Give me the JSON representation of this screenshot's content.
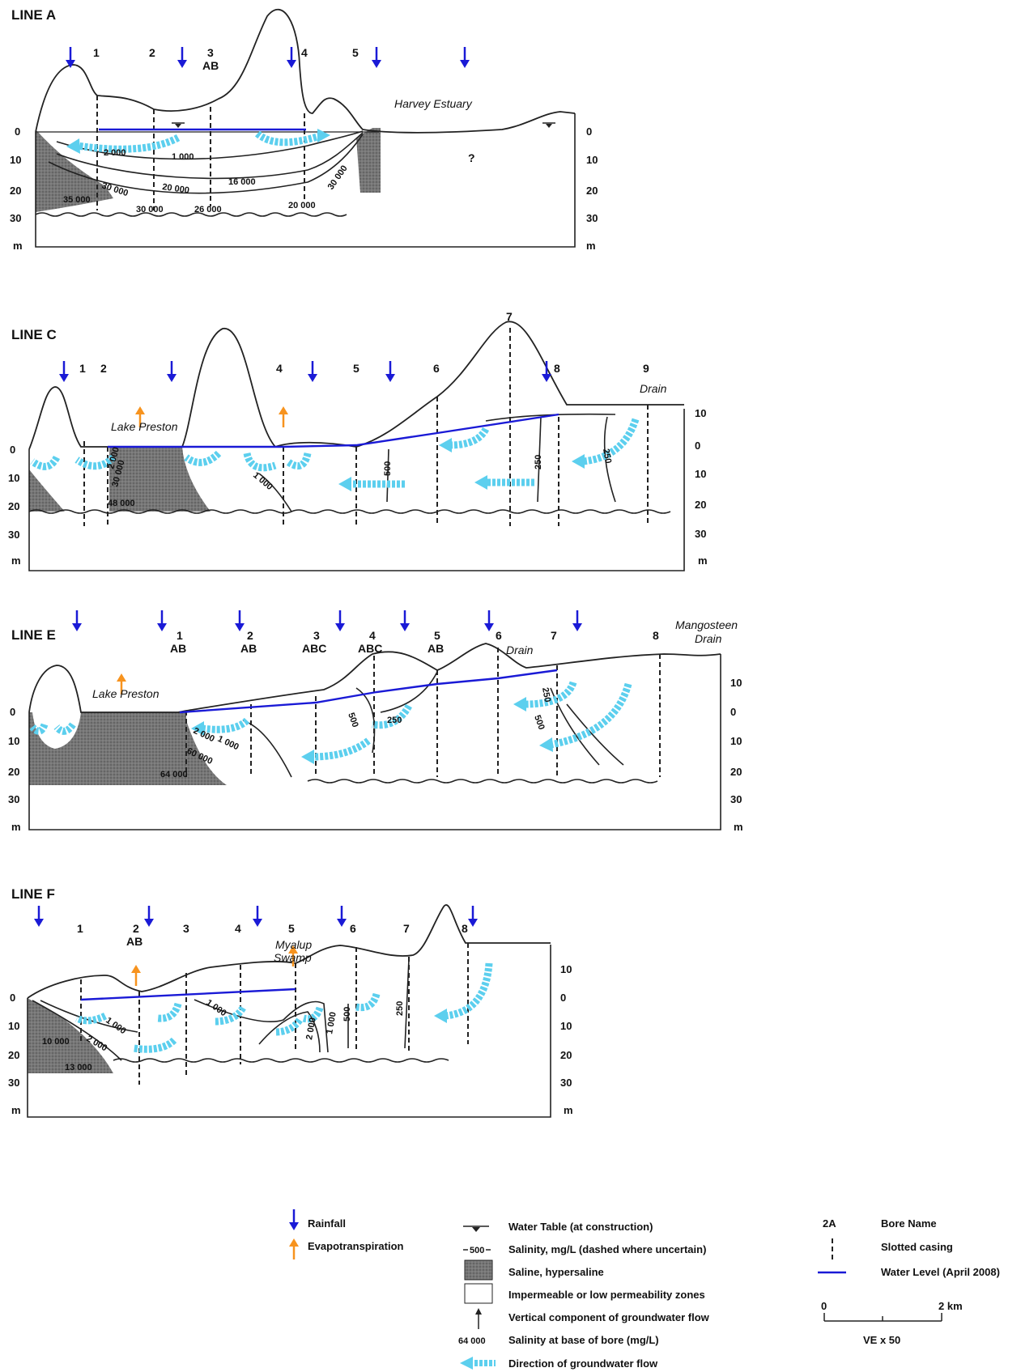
{
  "colors": {
    "rainfall": "#1a1ad6",
    "evapotranspiration": "#f7931e",
    "flow": "#5ccfee",
    "water_level": "#1a1ad6",
    "saline": "#7a7a7a"
  },
  "line_a": {
    "title": "LINE A",
    "bores": [
      "1",
      "2",
      "3",
      "AB",
      "4",
      "5"
    ],
    "place": "Harvey Estuary",
    "question": "?",
    "depths_left": [
      "0",
      "10",
      "20",
      "30",
      "m"
    ],
    "depths_right": [
      "0",
      "10",
      "20",
      "30",
      "m"
    ],
    "salinities": [
      "2 000",
      "1 000",
      "30 000",
      "20 000",
      "16 000",
      "30 000",
      "35 000",
      "30 000",
      "26 000",
      "20 000"
    ]
  },
  "line_c": {
    "title": "LINE C",
    "bores": [
      "1",
      "2",
      "4",
      "5",
      "6",
      "7",
      "8",
      "9"
    ],
    "places": [
      "Lake Preston",
      "Drain"
    ],
    "depths_left": [
      "0",
      "10",
      "20",
      "30",
      "m"
    ],
    "depths_right": [
      "10",
      "0",
      "10",
      "20",
      "30",
      "m"
    ],
    "salinities": [
      "2 000",
      "30 000",
      "1 000",
      "500",
      "250",
      "250",
      "48 000"
    ]
  },
  "line_e": {
    "title": "LINE E",
    "bores": [
      "1",
      "AB",
      "2",
      "AB",
      "3",
      "ABC",
      "4",
      "ABC",
      "5",
      "AB",
      "6",
      "7",
      "8"
    ],
    "places": [
      "Lake Preston",
      "Drain",
      "Mangosteen",
      "Drain"
    ],
    "depths_left": [
      "0",
      "10",
      "20",
      "30",
      "m"
    ],
    "depths_right": [
      "10",
      "0",
      "10",
      "20",
      "30",
      "m"
    ],
    "salinities": [
      "2 000",
      "1 000",
      "60 000",
      "500",
      "250",
      "250",
      "500",
      "64 000"
    ]
  },
  "line_f": {
    "title": "LINE F",
    "bores": [
      "1",
      "2",
      "AB",
      "3",
      "4",
      "5",
      "6",
      "7",
      "8"
    ],
    "places": [
      "Myalup",
      "Swamp"
    ],
    "depths_left": [
      "0",
      "10",
      "20",
      "30",
      "m"
    ],
    "depths_right": [
      "10",
      "0",
      "10",
      "20",
      "30",
      "m"
    ],
    "salinities": [
      "1 000",
      "1 000",
      "2 000",
      "10 000",
      "13 000",
      "2 000",
      "1 000",
      "500",
      "250"
    ]
  },
  "legend": {
    "rainfall": "Rainfall",
    "evapotranspiration": "Evapotranspiration",
    "water_table": "Water Table (at construction)",
    "salinity_sample": "500",
    "salinity": "Salinity, mg/L (dashed where uncertain)",
    "saline": "Saline, hypersaline",
    "impermeable": "Impermeable or low permeability zones",
    "vertical_flow": "Vertical component of groundwater flow",
    "base_sample": "64 000",
    "base_salinity": "Salinity at base of bore (mg/L)",
    "flow_direction": "Direction of groundwater flow",
    "bore_sample": "2A",
    "bore_name": "Bore Name",
    "slotted_casing": "Slotted casing",
    "water_level": "Water Level (April 2008)",
    "scale_start": "0",
    "scale_end": "2 km",
    "ve": "VE x 50"
  }
}
